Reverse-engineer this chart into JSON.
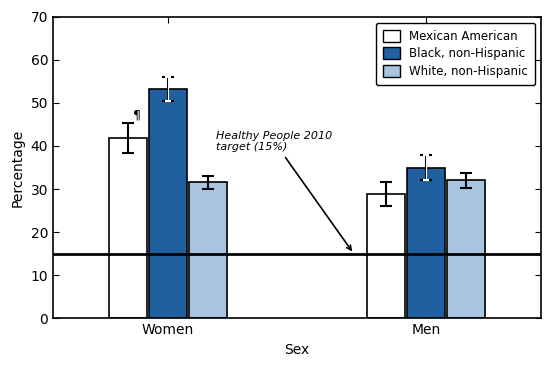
{
  "title": "",
  "xlabel": "Sex",
  "ylabel": "Percentage",
  "ylim": [
    0,
    70
  ],
  "yticks": [
    0,
    10,
    20,
    30,
    40,
    50,
    60,
    70
  ],
  "groups": [
    "Women",
    "Men"
  ],
  "categories": [
    "Mexican American",
    "Black, non-Hispanic",
    "White, non-Hispanic"
  ],
  "values": {
    "Women": [
      41.8,
      53.3,
      31.6
    ],
    "Men": [
      28.8,
      35.0,
      32.0
    ]
  },
  "errors": {
    "Women": [
      3.5,
      2.8,
      1.5
    ],
    "Men": [
      2.8,
      2.8,
      1.8
    ]
  },
  "bar_colors": [
    "#ffffff",
    "#2060a0",
    "#a8c4e0"
  ],
  "bar_edgecolor": "#000000",
  "healthy_people_target": 15,
  "annotation_text": "Healthy People 2010\ntarget (15%)",
  "pilcrow_label": "¶",
  "legend_labels": [
    "Mexican American",
    "Black, non-Hispanic",
    "White, non-Hispanic"
  ],
  "group_centers": [
    1.1,
    2.9
  ],
  "bar_width": 0.28,
  "xlim": [
    0.3,
    3.7
  ]
}
